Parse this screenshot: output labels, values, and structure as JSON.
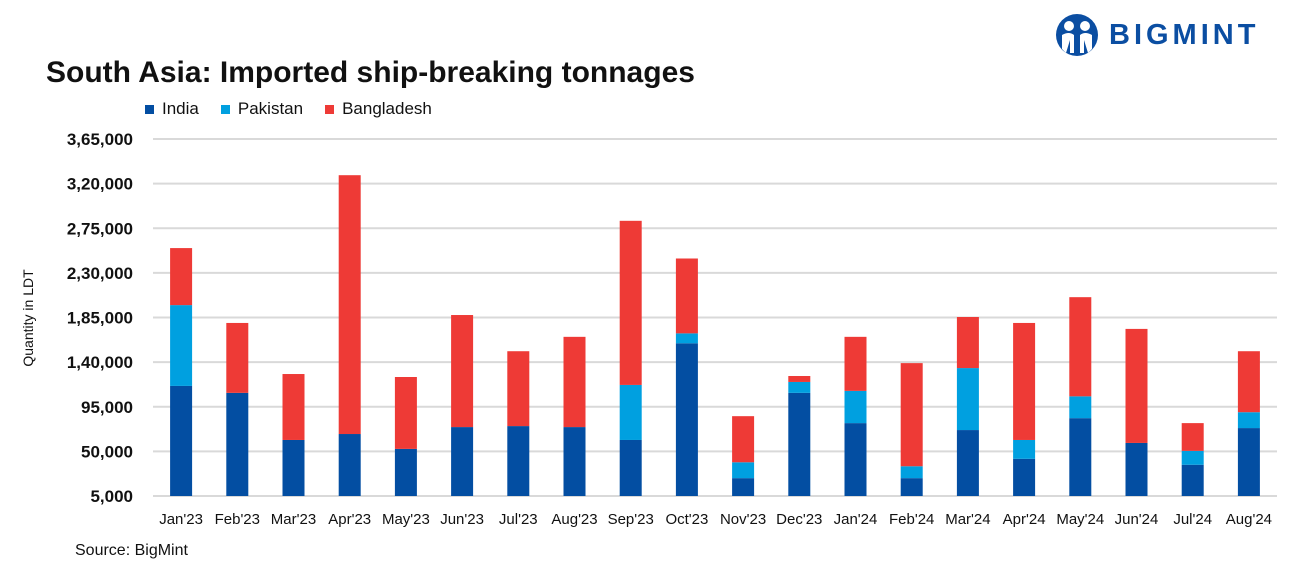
{
  "logo": {
    "text": "BIGMINT",
    "color": "#0B4EA2"
  },
  "source": "Source: BigMint",
  "chart_data": {
    "type": "bar",
    "stacked": true,
    "title": "South Asia: Imported ship-breaking tonnages",
    "xlabel": "",
    "ylabel": "Quantity in LDT",
    "ylim": [
      5000,
      365000
    ],
    "yticks": [
      5000,
      50000,
      95000,
      140000,
      185000,
      230000,
      275000,
      320000,
      365000
    ],
    "ytick_labels": [
      "5,000",
      "50,000",
      "95,000",
      "1,40,000",
      "1,85,000",
      "2,30,000",
      "2,75,000",
      "3,20,000",
      "3,65,000"
    ],
    "grid": true,
    "legend_position": "top-left",
    "categories": [
      "Jan'23",
      "Feb'23",
      "Mar'23",
      "Apr'23",
      "May'23",
      "Jun'23",
      "Jul'23",
      "Aug'23",
      "Sep'23",
      "Oct'23",
      "Nov'23",
      "Dec'23",
      "Jan'24",
      "Feb'24",
      "Mar'24",
      "Apr'24",
      "May'24",
      "Jun'24",
      "Jul'24",
      "Aug'24"
    ],
    "series": [
      {
        "name": "India",
        "color": "#034EA2",
        "values": [
          116000,
          109000,
          61500,
          67500,
          52500,
          74500,
          75500,
          74500,
          61500,
          159000,
          23000,
          109000,
          78500,
          23000,
          71500,
          42500,
          83500,
          58500,
          36500,
          73500
        ]
      },
      {
        "name": "Pakistan",
        "color": "#00A0E0",
        "values": [
          81500,
          0,
          0,
          0,
          0,
          0,
          0,
          0,
          55500,
          10000,
          16000,
          11000,
          32500,
          12000,
          62500,
          19000,
          22000,
          0,
          14000,
          16000
        ]
      },
      {
        "name": "Bangladesh",
        "color": "#EE3A36",
        "values": [
          57500,
          70500,
          66500,
          261000,
          72500,
          113000,
          75500,
          91000,
          165500,
          75500,
          46500,
          6000,
          54500,
          104000,
          51500,
          118000,
          100000,
          115000,
          28000,
          61500
        ]
      }
    ]
  }
}
